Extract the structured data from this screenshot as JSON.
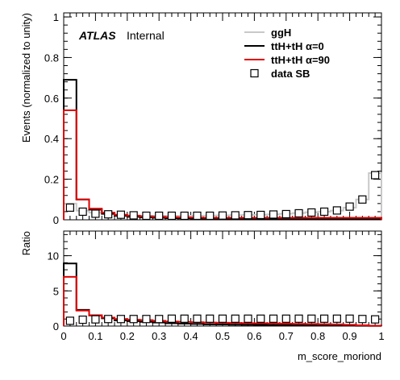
{
  "chart_data": [
    {
      "type": "line",
      "panel": "main",
      "ylabel": "Events (normalized to unity)",
      "xlim": [
        0,
        1
      ],
      "ylim": [
        0,
        1.02
      ],
      "yticks": [
        "0",
        "0.2",
        "0.4",
        "0.6",
        "0.8",
        "1"
      ],
      "bin_edges": [
        0,
        0.04,
        0.08,
        0.12,
        0.16,
        0.2,
        0.24,
        0.28,
        0.32,
        0.36,
        0.4,
        0.44,
        0.48,
        0.52,
        0.56,
        0.6,
        0.64,
        0.68,
        0.72,
        0.76,
        0.8,
        0.84,
        0.88,
        0.92,
        0.96,
        1.0
      ],
      "annotations": {
        "atlas": "ATLAS",
        "label": "Internal"
      },
      "legend": {
        "placement": "top-right"
      },
      "series": [
        {
          "name": "ggH",
          "style": "step",
          "color": "#c8c8c8",
          "values": [
            0.08,
            0.045,
            0.035,
            0.028,
            0.025,
            0.022,
            0.02,
            0.02,
            0.02,
            0.02,
            0.02,
            0.021,
            0.022,
            0.023,
            0.024,
            0.025,
            0.027,
            0.03,
            0.033,
            0.037,
            0.04,
            0.045,
            0.06,
            0.1,
            0.23
          ]
        },
        {
          "name": "ttH+tH α=0",
          "style": "step",
          "color": "#000000",
          "values": [
            0.69,
            0.1,
            0.05,
            0.03,
            0.02,
            0.015,
            0.012,
            0.01,
            0.008,
            0.007,
            0.006,
            0.005,
            0.005,
            0.004,
            0.004,
            0.004,
            0.004,
            0.004,
            0.004,
            0.004,
            0.004,
            0.004,
            0.004,
            0.004,
            0.005
          ]
        },
        {
          "name": "ttH+tH α=90",
          "style": "step",
          "color": "#e00000",
          "values": [
            0.54,
            0.1,
            0.055,
            0.035,
            0.025,
            0.02,
            0.017,
            0.015,
            0.013,
            0.012,
            0.011,
            0.01,
            0.01,
            0.01,
            0.01,
            0.01,
            0.01,
            0.01,
            0.01,
            0.01,
            0.01,
            0.01,
            0.01,
            0.01,
            0.01
          ]
        },
        {
          "name": "data SB",
          "style": "markers",
          "marker": "open-square",
          "color": "#000000",
          "values": [
            0.06,
            0.04,
            0.03,
            0.027,
            0.025,
            0.022,
            0.02,
            0.02,
            0.02,
            0.02,
            0.02,
            0.02,
            0.021,
            0.022,
            0.023,
            0.024,
            0.026,
            0.028,
            0.032,
            0.036,
            0.04,
            0.046,
            0.065,
            0.1,
            0.22
          ]
        }
      ]
    },
    {
      "type": "line",
      "panel": "ratio",
      "ylabel": "Ratio",
      "xlabel": "m_score_moriond",
      "xlim": [
        0,
        1
      ],
      "ylim": [
        0,
        13.5
      ],
      "yticks": [
        "0",
        "5",
        "10"
      ],
      "xticks": [
        "0",
        "0.1",
        "0.2",
        "0.3",
        "0.4",
        "0.5",
        "0.6",
        "0.7",
        "0.8",
        "0.9",
        "1"
      ],
      "bin_edges": [
        0,
        0.04,
        0.08,
        0.12,
        0.16,
        0.2,
        0.24,
        0.28,
        0.32,
        0.36,
        0.4,
        0.44,
        0.48,
        0.52,
        0.56,
        0.6,
        0.64,
        0.68,
        0.72,
        0.76,
        0.8,
        0.84,
        0.88,
        0.92,
        0.96,
        1.0
      ],
      "series": [
        {
          "name": "ttH+tH α=0",
          "style": "step",
          "color": "#000000",
          "values": [
            8.9,
            2.3,
            1.5,
            1.1,
            0.8,
            0.7,
            0.6,
            0.5,
            0.4,
            0.35,
            0.3,
            0.25,
            0.23,
            0.2,
            0.18,
            0.17,
            0.16,
            0.15,
            0.13,
            0.12,
            0.1,
            0.09,
            0.07,
            0.05,
            0.03
          ]
        },
        {
          "name": "ttH+tH α=90",
          "style": "step",
          "color": "#e00000",
          "values": [
            7.0,
            2.2,
            1.55,
            1.2,
            1.0,
            0.9,
            0.85,
            0.75,
            0.65,
            0.6,
            0.55,
            0.5,
            0.47,
            0.45,
            0.42,
            0.4,
            0.38,
            0.35,
            0.32,
            0.3,
            0.27,
            0.24,
            0.18,
            0.12,
            0.05
          ]
        },
        {
          "name": "data SB",
          "style": "markers",
          "marker": "open-square",
          "color": "#000000",
          "values": [
            0.75,
            0.9,
            0.95,
            1.0,
            1.0,
            1.0,
            1.0,
            1.0,
            1.05,
            1.05,
            1.05,
            1.05,
            1.05,
            1.05,
            1.05,
            1.05,
            1.05,
            1.05,
            1.05,
            1.05,
            1.05,
            1.05,
            1.05,
            1.0,
            0.95
          ]
        }
      ]
    }
  ]
}
